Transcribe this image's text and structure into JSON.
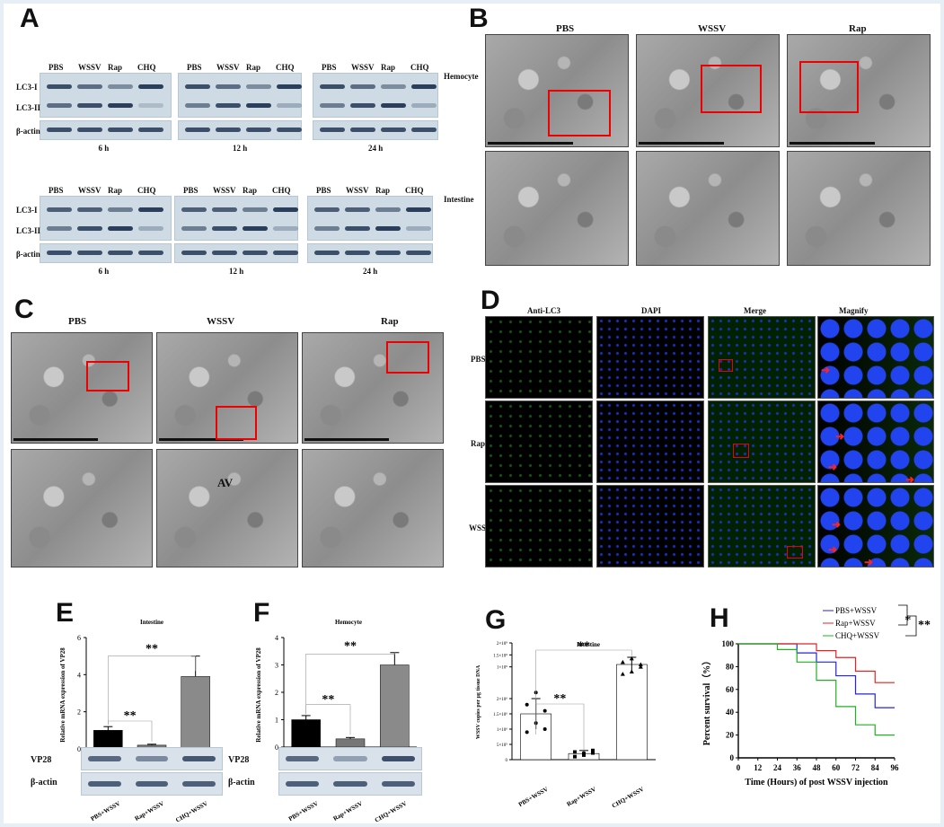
{
  "panelA": {
    "label": "A",
    "lanes": [
      "PBS",
      "WSSV",
      "Rap",
      "CHQ"
    ],
    "rows": [
      "LC3-I",
      "LC3-II",
      "β-actin"
    ],
    "times": [
      "6 h",
      "12 h",
      "24 h"
    ],
    "tissue_top": "Hemocyte",
    "tissue_bottom": "Intestine"
  },
  "panelB": {
    "label": "B",
    "cols": [
      "PBS",
      "WSSV",
      "Rap"
    ]
  },
  "panelC": {
    "label": "C",
    "cols": [
      "PBS",
      "WSSV",
      "Rap"
    ],
    "av": "AV"
  },
  "panelD": {
    "label": "D",
    "cols": [
      "Anti-LC3",
      "DAPI",
      "Merge",
      "Magnify"
    ],
    "rows": [
      "PBS",
      "Rap",
      "WSSV"
    ]
  },
  "panelE": {
    "label": "E",
    "title": "Intestine",
    "ylabel": "Relative mRNA expression of VP28",
    "blot_rows": [
      "VP28",
      "β-actin"
    ]
  },
  "panelF": {
    "label": "F",
    "title": "Hemocyte",
    "ylabel": "Relative mRNA expression of VP28",
    "blot_rows": [
      "VP28",
      "β-actin"
    ]
  },
  "panelG": {
    "label": "G",
    "title": "Intestine",
    "ylabel": "WSSV copies per μg tissue DNA"
  },
  "panelH": {
    "label": "H",
    "ylabel": "Percent survival（%）",
    "xlabel": "Time (Hours) of post WSSV injection",
    "sig1": "*",
    "sig2": "**"
  },
  "colors": {
    "black_bar": "#000000",
    "grey_bar": "#8a8a8a",
    "blue": "#2424d8",
    "red": "#e02424",
    "green": "#1fb21f"
  },
  "chart_data": [
    {
      "type": "bar",
      "title": "Intestine",
      "categories": [
        "PBS+WSSV",
        "Rap+WSSV",
        "CHQ+WSSV"
      ],
      "values": [
        1.0,
        0.2,
        3.9
      ],
      "errors": [
        0.2,
        0.05,
        1.1
      ],
      "ylim": [
        0,
        6
      ],
      "yticks": [
        "0",
        "2",
        "4",
        "6"
      ],
      "ylabel": "Relative mRNA expression of VP28",
      "sig": [
        "**",
        "**"
      ]
    },
    {
      "type": "bar",
      "title": "Hemocyte",
      "categories": [
        "PBS+WSSV",
        "Rap+WSSV",
        "CHQ+WSSV"
      ],
      "values": [
        1.0,
        0.3,
        3.0
      ],
      "errors": [
        0.15,
        0.05,
        0.45
      ],
      "ylim": [
        0,
        4
      ],
      "yticks": [
        "0",
        "1",
        "2",
        "3",
        "4"
      ],
      "ylabel": "Relative mRNA expression of VP28",
      "sig": [
        "**",
        "**"
      ]
    },
    {
      "type": "bar",
      "title": "Intestine",
      "categories": [
        "PBS+WSSV",
        "Rap+WSSV",
        "CHQ+WSSV"
      ],
      "values": [
        1500000.0,
        200000.0,
        1100000000.0
      ],
      "errors": [
        500000.0,
        100000.0,
        300000000.0
      ],
      "points": [
        [
          900000.0,
          1200000.0,
          1600000.0,
          1800000.0,
          2200000.0,
          1000000.0
        ],
        [
          100000.0,
          200000.0,
          300000.0,
          250000.0,
          150000.0,
          220000.0
        ],
        [
          700000000.0,
          800000000.0,
          1000000000.0,
          1200000000.0,
          1350000000.0,
          1100000000.0
        ]
      ],
      "ytick_labels": [
        "0",
        "5×10⁵",
        "1×10⁶",
        "1.5×10⁶",
        "2×10⁶",
        "1×10⁹",
        "1.5×10⁹",
        "2×10⁹"
      ],
      "ylabel": "WSSV copies per μg tissue DNA",
      "sig": [
        "**",
        "**"
      ]
    },
    {
      "type": "line",
      "x": [
        0,
        12,
        24,
        36,
        48,
        60,
        72,
        84,
        96
      ],
      "xticks": [
        "0",
        "12",
        "24",
        "36",
        "48",
        "60",
        "72",
        "84",
        "96"
      ],
      "yticks": [
        "0",
        "20",
        "40",
        "60",
        "80",
        "100"
      ],
      "ylim": [
        0,
        100
      ],
      "xlim": [
        0,
        96
      ],
      "xlabel": "Time (Hours) of post WSSV injection",
      "ylabel": "Percent survival（%）",
      "legend": "top-right",
      "series": [
        {
          "name": "PBS+WSSV",
          "color": "#2424d8",
          "steps": [
            [
              0,
              100
            ],
            [
              36,
              100
            ],
            [
              36,
              92
            ],
            [
              48,
              92
            ],
            [
              48,
              84
            ],
            [
              60,
              84
            ],
            [
              60,
              72
            ],
            [
              72,
              72
            ],
            [
              72,
              56
            ],
            [
              84,
              56
            ],
            [
              84,
              44
            ],
            [
              96,
              44
            ]
          ]
        },
        {
          "name": "Rap+WSSV",
          "color": "#e02424",
          "steps": [
            [
              0,
              100
            ],
            [
              48,
              100
            ],
            [
              48,
              94
            ],
            [
              60,
              94
            ],
            [
              60,
              88
            ],
            [
              72,
              88
            ],
            [
              72,
              76
            ],
            [
              84,
              76
            ],
            [
              84,
              66
            ],
            [
              96,
              66
            ]
          ]
        },
        {
          "name": "CHQ+WSSV",
          "color": "#1fb21f",
          "steps": [
            [
              0,
              100
            ],
            [
              24,
              100
            ],
            [
              24,
              95
            ],
            [
              36,
              95
            ],
            [
              36,
              84
            ],
            [
              48,
              84
            ],
            [
              48,
              68
            ],
            [
              60,
              68
            ],
            [
              60,
              45
            ],
            [
              72,
              45
            ],
            [
              72,
              29
            ],
            [
              84,
              29
            ],
            [
              84,
              20
            ],
            [
              96,
              20
            ]
          ]
        }
      ]
    }
  ]
}
